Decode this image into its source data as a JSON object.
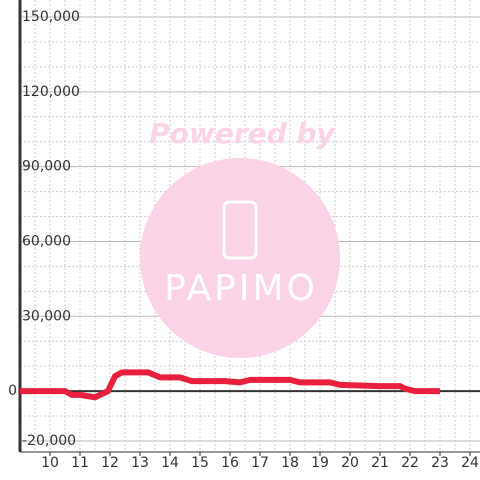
{
  "chart_data": {
    "type": "line",
    "x": [
      9,
      10.5,
      10.73,
      11,
      11.5,
      11.93,
      12.17,
      12.4,
      13.27,
      13.67,
      14.33,
      14.73,
      15.83,
      16.33,
      16.67,
      18,
      18.33,
      19.33,
      19.67,
      21,
      21.67,
      21.83,
      22.17,
      23
    ],
    "series": [
      {
        "color": "#e8203e",
        "values": [
          0,
          0,
          -1500,
          -1500,
          -2500,
          0,
          6000,
          7500,
          7500,
          5500,
          5500,
          4000,
          4000,
          3500,
          4500,
          4500,
          3500,
          3500,
          2500,
          2000,
          2000,
          1000,
          0,
          0
        ]
      }
    ],
    "xlim": [
      9,
      24
    ],
    "xticks": [
      10,
      11,
      12,
      13,
      14,
      15,
      16,
      17,
      18,
      19,
      20,
      21,
      22,
      23,
      24
    ],
    "xminorticks": [
      9.5,
      10.5,
      11.5,
      12.5,
      13.5,
      14.5,
      15.5,
      16.5,
      17.5,
      18.5,
      19.5,
      20.5,
      21.5,
      22.5,
      23.5
    ],
    "ylim": [
      -20000,
      150000
    ],
    "yticks": [
      {
        "value": -20000,
        "label": "-20,000"
      },
      0,
      {
        "value": 30000,
        "label": "30,000"
      },
      {
        "value": 60000,
        "label": "60,000"
      },
      {
        "value": 90000,
        "label": "90,000"
      },
      {
        "value": 120000,
        "label": "120,000"
      },
      {
        "value": 150000,
        "label": "150,000"
      }
    ],
    "yminorticks": [
      -10000,
      10000,
      20000,
      40000,
      50000,
      70000,
      80000,
      100000,
      110000,
      130000,
      140000
    ],
    "grid": true,
    "watermark": {
      "caption": "Powered by",
      "logo": "PAPIMO"
    }
  }
}
